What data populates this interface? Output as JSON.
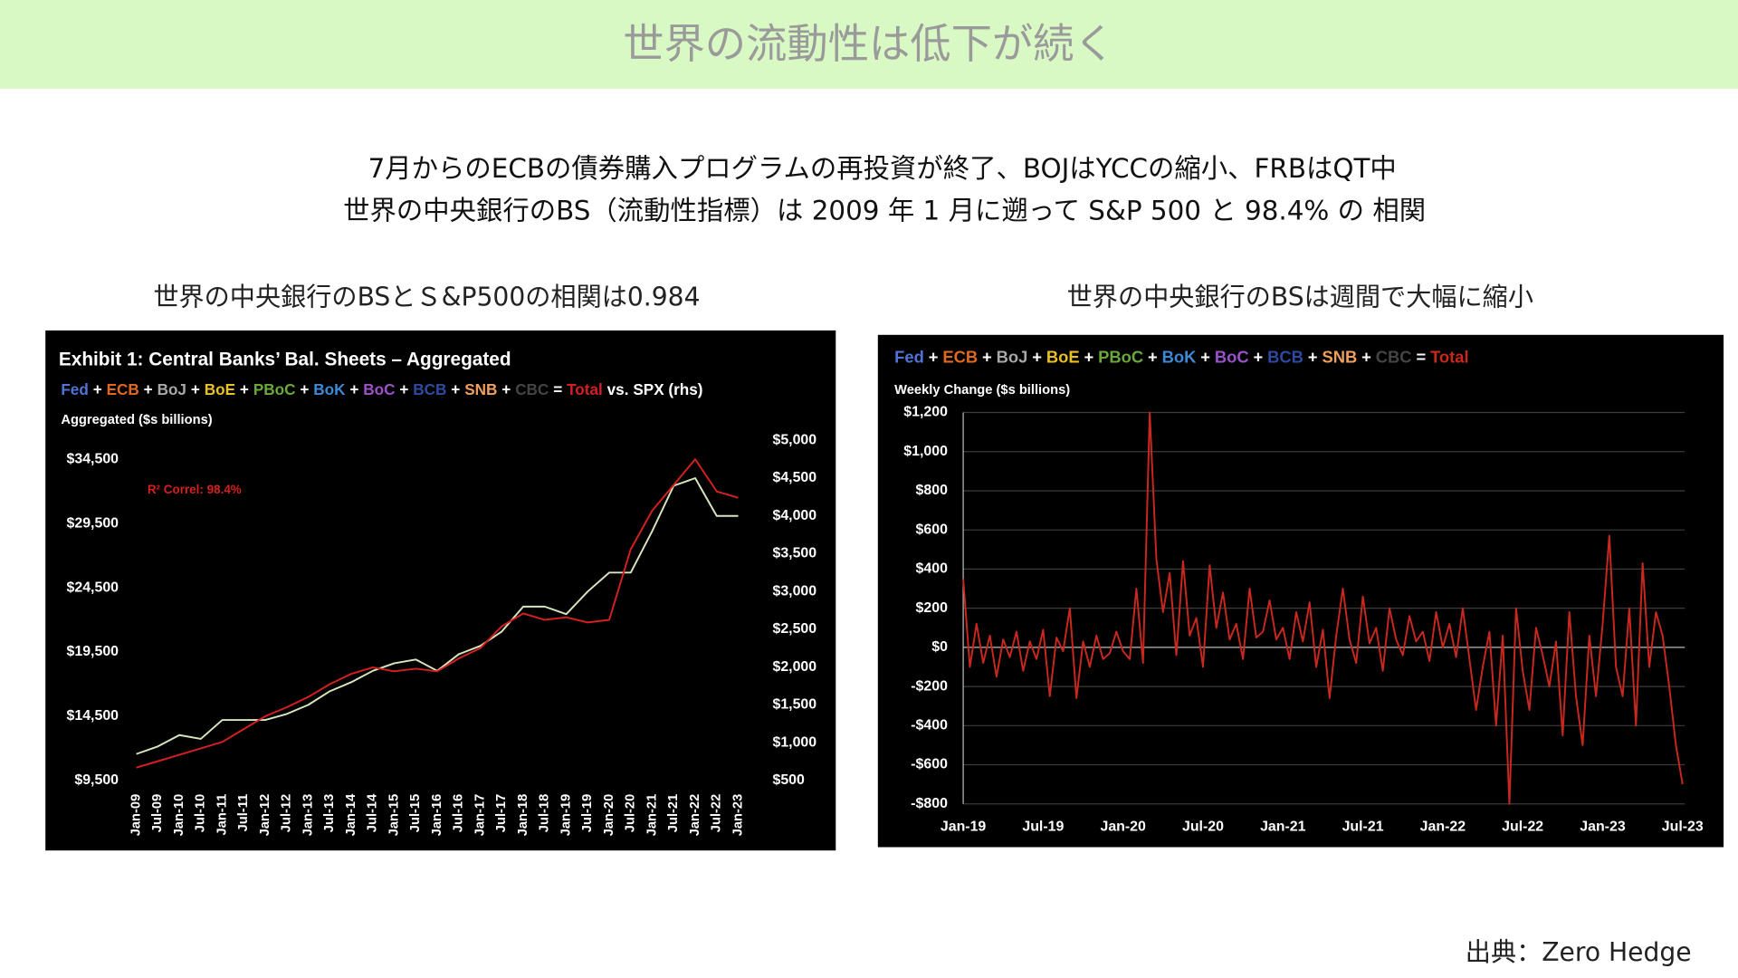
{
  "header": {
    "title": "世界の流動性は低下が続く"
  },
  "subtitle_lines": [
    "7月からのECBの債券購入プログラムの再投資が終了、BOJはYCCの縮小、FRBはQT中",
    "世界の中央銀行のBS（流動性指標）は 2009 年 1 月に遡って S&P 500 と 98.4% の 相関"
  ],
  "captions": [
    "世界の中央銀行のBSとＳ&P500の相関は0.984",
    "世界の中央銀行のBSは週間で大幅に縮小"
  ],
  "source": "出典：Zero Hedge",
  "chart_data": [
    {
      "type": "line",
      "title": "Exhibit 1: Central Banks’ Bal. Sheets – Aggregated",
      "legend": {
        "items": [
          {
            "name": "Fed",
            "color": "#4f74d6"
          },
          {
            "name": "ECB",
            "color": "#e0691f"
          },
          {
            "name": "BoJ",
            "color": "#a8a8a8"
          },
          {
            "name": "BoE",
            "color": "#e9c021"
          },
          {
            "name": "PBoC",
            "color": "#6aa83a"
          },
          {
            "name": "BoK",
            "color": "#3b8ad6"
          },
          {
            "name": "BoC",
            "color": "#9b52c9"
          },
          {
            "name": "BCB",
            "color": "#2c4ba0"
          },
          {
            "name": "SNB",
            "color": "#f0a05e"
          },
          {
            "name": "CBC",
            "color": "#444444"
          }
        ],
        "plus": "+",
        "equals": "=",
        "versus": "vs."
      },
      "y_label": "Aggregated ($s billions)",
      "annotation": "R² Correl: 98.4%",
      "categories": [
        "Jan-09",
        "Jul-09",
        "Jan-10",
        "Jul-10",
        "Jan-11",
        "Jul-11",
        "Jan-12",
        "Jul-12",
        "Jan-13",
        "Jul-13",
        "Jan-14",
        "Jul-14",
        "Jan-15",
        "Jul-15",
        "Jan-16",
        "Jul-16",
        "Jan-17",
        "Jul-17",
        "Jan-18",
        "Jul-18",
        "Jan-19",
        "Jul-19",
        "Jan-20",
        "Jul-20",
        "Jan-21",
        "Jul-21",
        "Jan-22",
        "Jul-22",
        "Jan-23"
      ],
      "series": [
        {
          "name": "Total",
          "color": "#d42020",
          "values": [
            10500,
            11000,
            11500,
            12000,
            12500,
            13500,
            14500,
            15200,
            16000,
            17000,
            17800,
            18300,
            18000,
            18200,
            18000,
            19000,
            19800,
            21500,
            22500,
            22000,
            22200,
            21800,
            22000,
            27500,
            30500,
            32500,
            34500,
            32000,
            31500
          ]
        },
        {
          "name": "SPX (rhs)",
          "color": "#d8e6c0",
          "axis": "y2",
          "values": [
            850,
            950,
            1100,
            1050,
            1300,
            1300,
            1300,
            1380,
            1500,
            1680,
            1800,
            1950,
            2050,
            2100,
            1950,
            2170,
            2280,
            2470,
            2800,
            2800,
            2700,
            3000,
            3250,
            3250,
            3800,
            4400,
            4500,
            4000,
            4000
          ]
        }
      ],
      "ylim": [
        8800,
        36500
      ],
      "yticks": [
        {
          "value": 9500,
          "label": "$9,500"
        },
        {
          "value": 14500,
          "label": "$14,500"
        },
        {
          "value": 19500,
          "label": "$19,500"
        },
        {
          "value": 24500,
          "label": "$24,500"
        },
        {
          "value": 29500,
          "label": "$29,500"
        },
        {
          "value": 34500,
          "label": "$34,500"
        }
      ],
      "y2lim": [
        380,
        5090
      ],
      "y2ticks": [
        {
          "value": 500,
          "label": "$500"
        },
        {
          "value": 1000,
          "label": "$1,000"
        },
        {
          "value": 1500,
          "label": "$1,500"
        },
        {
          "value": 2000,
          "label": "$2,000"
        },
        {
          "value": 2500,
          "label": "$2,500"
        },
        {
          "value": 3000,
          "label": "$3,000"
        },
        {
          "value": 3500,
          "label": "$3,500"
        },
        {
          "value": 4000,
          "label": "$4,000"
        },
        {
          "value": 4500,
          "label": "$4,500"
        },
        {
          "value": 5000,
          "label": "$5,000"
        }
      ],
      "grid": false
    },
    {
      "type": "line",
      "legend": {
        "items": [
          {
            "name": "Fed",
            "color": "#4f74d6"
          },
          {
            "name": "ECB",
            "color": "#e0691f"
          },
          {
            "name": "BoJ",
            "color": "#a8a8a8"
          },
          {
            "name": "BoE",
            "color": "#e9c021"
          },
          {
            "name": "PBoC",
            "color": "#6aa83a"
          },
          {
            "name": "BoK",
            "color": "#3b8ad6"
          },
          {
            "name": "BoC",
            "color": "#9b52c9"
          },
          {
            "name": "BCB",
            "color": "#2c4ba0"
          },
          {
            "name": "SNB",
            "color": "#f0a05e"
          },
          {
            "name": "CBC",
            "color": "#444444"
          }
        ],
        "plus": "+",
        "equals": "="
      },
      "y_label": "Weekly Change ($s billions)",
      "categories": [
        "Jan-19",
        null,
        null,
        null,
        null,
        null,
        null,
        null,
        null,
        null,
        null,
        null,
        "Jul-19",
        null,
        null,
        null,
        null,
        null,
        null,
        null,
        null,
        null,
        null,
        null,
        "Jan-20",
        null,
        null,
        null,
        null,
        null,
        null,
        null,
        null,
        null,
        null,
        null,
        "Jul-20",
        null,
        null,
        null,
        null,
        null,
        null,
        null,
        null,
        null,
        null,
        null,
        "Jan-21",
        null,
        null,
        null,
        null,
        null,
        null,
        null,
        null,
        null,
        null,
        null,
        "Jul-21",
        null,
        null,
        null,
        null,
        null,
        null,
        null,
        null,
        null,
        null,
        null,
        "Jan-22",
        null,
        null,
        null,
        null,
        null,
        null,
        null,
        null,
        null,
        null,
        null,
        "Jul-22",
        null,
        null,
        null,
        null,
        null,
        null,
        null,
        null,
        null,
        null,
        null,
        "Jan-23",
        null,
        null,
        null,
        null,
        null,
        null,
        null,
        null,
        null,
        null,
        null,
        "Jul-23"
      ],
      "series": [
        {
          "name": "Total",
          "color": "#c8281e",
          "values": [
            350,
            -100,
            120,
            -80,
            60,
            -150,
            40,
            -50,
            80,
            -120,
            30,
            -60,
            90,
            -250,
            50,
            -20,
            200,
            -260,
            30,
            -100,
            60,
            -60,
            -30,
            80,
            -20,
            -60,
            300,
            -80,
            1200,
            450,
            180,
            380,
            -40,
            440,
            60,
            150,
            -100,
            420,
            100,
            280,
            40,
            120,
            -60,
            300,
            50,
            80,
            240,
            40,
            100,
            -60,
            180,
            30,
            230,
            -100,
            90,
            -260,
            60,
            300,
            40,
            -80,
            260,
            20,
            100,
            -120,
            200,
            40,
            -40,
            160,
            30,
            80,
            -70,
            180,
            0,
            120,
            -50,
            200,
            -60,
            -320,
            -100,
            80,
            -400,
            60,
            -800,
            200,
            -120,
            -320,
            100,
            -40,
            -200,
            30,
            -450,
            180,
            -250,
            -500,
            60,
            -250,
            120,
            570,
            -100,
            -250,
            200,
            -400,
            430,
            -100,
            180,
            60,
            -200,
            -500,
            -700
          ]
        }
      ],
      "ylim": [
        -800,
        1200
      ],
      "yticks": [
        {
          "value": -800,
          "label": "-$800"
        },
        {
          "value": -600,
          "label": "-$600"
        },
        {
          "value": -400,
          "label": "-$400"
        },
        {
          "value": -200,
          "label": "-$200"
        },
        {
          "value": 0,
          "label": "$0"
        },
        {
          "value": 200,
          "label": "$200"
        },
        {
          "value": 400,
          "label": "$400"
        },
        {
          "value": 600,
          "label": "$600"
        },
        {
          "value": 800,
          "label": "$800"
        },
        {
          "value": 1000,
          "label": "$1,000"
        },
        {
          "value": 1200,
          "label": "$1,200"
        }
      ],
      "grid": true
    }
  ]
}
